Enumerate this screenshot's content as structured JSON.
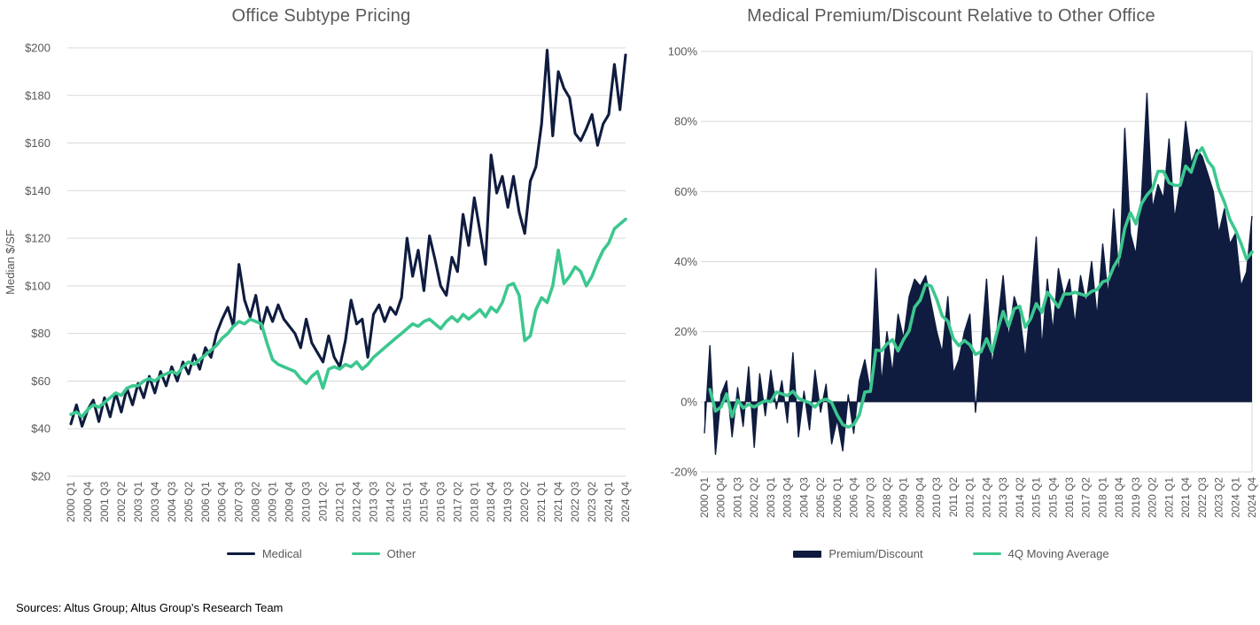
{
  "page": {
    "sources_note": "Sources: Altus Group; Altus Group's Research Team",
    "background": "#ffffff"
  },
  "colors": {
    "navy": "#0f1c3f",
    "green": "#3cc78f",
    "title_gray": "#595959",
    "tick_gray": "#595959",
    "grid": "#d9d9d9",
    "zero_axis": "#16233f",
    "background": "#ffffff"
  },
  "x_axis": {
    "start": "2000 Q1",
    "end": "2024 Q4",
    "frequency": "quarterly",
    "points": 100,
    "tick_every": 3,
    "tick_labels": [
      "2000 Q1",
      "2000 Q4",
      "2001 Q3",
      "2002 Q2",
      "2003 Q1",
      "2003 Q4",
      "2004 Q3",
      "2005 Q2",
      "2006 Q1",
      "2006 Q4",
      "2007 Q3",
      "2008 Q2",
      "2009 Q1",
      "2009 Q4",
      "2010 Q3",
      "2011 Q2",
      "2012 Q1",
      "2012 Q4",
      "2013 Q3",
      "2014 Q2",
      "2015 Q1",
      "2015 Q4",
      "2016 Q3",
      "2017 Q2",
      "2018 Q1",
      "2018 Q4",
      "2019 Q3",
      "2020 Q2",
      "2021 Q1",
      "2021 Q4",
      "2022 Q3",
      "2023 Q2",
      "2024 Q1",
      "2024 Q4"
    ]
  },
  "chart_data": [
    {
      "type": "line",
      "title": "Office Subtype Pricing",
      "xlabel": "",
      "ylabel": "Median $/SF",
      "ylim": [
        20,
        200
      ],
      "y_tick_values": [
        200,
        180,
        160,
        140,
        120,
        100,
        80,
        60,
        40,
        20
      ],
      "y_tick_labels": [
        "$200",
        "$180",
        "$160",
        "$140",
        "$120",
        "$100",
        "$80",
        "$60",
        "$40",
        "$20"
      ],
      "grid": true,
      "legend_position": "bottom",
      "series": [
        {
          "name": "Medical",
          "color": "#0f1c3f",
          "values": [
            42,
            50,
            41,
            48,
            52,
            43,
            53,
            45,
            55,
            47,
            57,
            50,
            59,
            53,
            62,
            55,
            64,
            58,
            66,
            60,
            68,
            63,
            71,
            65,
            74,
            70,
            80,
            86,
            91,
            83,
            109,
            94,
            87,
            96,
            82,
            91,
            85,
            92,
            86,
            83,
            80,
            74,
            86,
            76,
            72,
            68,
            79,
            70,
            66,
            77,
            94,
            84,
            86,
            70,
            88,
            92,
            85,
            91,
            88,
            95,
            120,
            104,
            115,
            98,
            121,
            111,
            100,
            96,
            112,
            106,
            130,
            117,
            137,
            123,
            109,
            155,
            139,
            146,
            133,
            146,
            131,
            122,
            144,
            150,
            168,
            199,
            163,
            190,
            183,
            179,
            164,
            161,
            166,
            172,
            159,
            168,
            172,
            193,
            174,
            197
          ]
        },
        {
          "name": "Other",
          "color": "#3cc78f",
          "values": [
            46,
            47,
            45,
            48,
            50,
            49,
            51,
            53,
            55,
            54,
            57,
            58,
            58,
            60,
            61,
            60,
            62,
            63,
            64,
            63,
            66,
            68,
            67,
            69,
            71,
            73,
            75,
            78,
            80,
            83,
            85,
            84,
            86,
            85,
            84,
            76,
            69,
            67,
            66,
            65,
            64,
            61,
            59,
            62,
            64,
            57,
            65,
            66,
            65,
            67,
            66,
            68,
            65,
            67,
            70,
            72,
            74,
            76,
            78,
            80,
            82,
            84,
            83,
            85,
            86,
            84,
            82,
            85,
            87,
            85,
            88,
            86,
            88,
            90,
            87,
            91,
            89,
            93,
            100,
            101,
            96,
            77,
            79,
            90,
            95,
            93,
            100,
            115,
            101,
            104,
            108,
            106,
            100,
            104,
            110,
            115,
            118,
            124,
            126,
            128
          ]
        }
      ]
    },
    {
      "type": "area",
      "title": "Medical Premium/Discount Relative to Other Office",
      "xlabel": "",
      "ylabel": "",
      "ylim": [
        -20,
        100
      ],
      "y_tick_values": [
        100,
        80,
        60,
        40,
        20,
        0,
        -20
      ],
      "y_tick_labels": [
        "100%",
        "80%",
        "60%",
        "40%",
        "20%",
        "0%",
        "-20%"
      ],
      "grid": true,
      "legend_position": "bottom",
      "series": [
        {
          "name": "Premium/Discount",
          "style": "area",
          "color": "#0f1c3f",
          "unit": "%",
          "values": [
            -9,
            16,
            -15,
            2,
            6,
            -10,
            4,
            -7,
            10,
            -13,
            8,
            -4,
            9,
            -2,
            6,
            -6,
            14,
            -10,
            3,
            -8,
            9,
            -3,
            5,
            -12,
            -5,
            -14,
            2,
            -9,
            6,
            12,
            3,
            38,
            5,
            20,
            8,
            25,
            18,
            30,
            35,
            33,
            36,
            28,
            20,
            14,
            30,
            8,
            12,
            20,
            25,
            -3,
            15,
            35,
            10,
            22,
            36,
            18,
            30,
            25,
            12,
            28,
            47,
            15,
            35,
            20,
            38,
            30,
            35,
            22,
            36,
            28,
            40,
            24,
            45,
            30,
            55,
            35,
            78,
            48,
            42,
            58,
            88,
            55,
            62,
            58,
            75,
            52,
            62,
            80,
            68,
            72,
            70,
            65,
            60,
            48,
            55,
            45,
            48,
            33,
            37,
            53
          ]
        },
        {
          "name": "4Q Moving Average",
          "style": "line",
          "color": "#3cc78f",
          "unit": "%",
          "derived_from": "Premium/Discount",
          "moving_average_window": 4
        }
      ]
    }
  ]
}
